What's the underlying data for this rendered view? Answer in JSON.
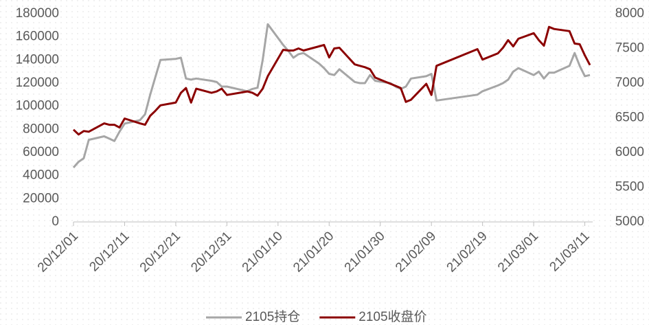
{
  "chart_data": {
    "type": "line",
    "x": [
      "20/12/01",
      "20/12/02",
      "20/12/03",
      "20/12/04",
      "20/12/07",
      "20/12/08",
      "20/12/09",
      "20/12/10",
      "20/12/11",
      "20/12/14",
      "20/12/15",
      "20/12/16",
      "20/12/17",
      "20/12/18",
      "20/12/21",
      "20/12/22",
      "20/12/23",
      "20/12/24",
      "20/12/25",
      "20/12/28",
      "20/12/29",
      "20/12/30",
      "20/12/31",
      "21/01/04",
      "21/01/05",
      "21/01/06",
      "21/01/07",
      "21/01/08",
      "21/01/11",
      "21/01/12",
      "21/01/13",
      "21/01/14",
      "21/01/15",
      "21/01/18",
      "21/01/19",
      "21/01/20",
      "21/01/21",
      "21/01/22",
      "21/01/25",
      "21/01/26",
      "21/01/27",
      "21/01/28",
      "21/01/29",
      "21/02/01",
      "21/02/02",
      "21/02/03",
      "21/02/04",
      "21/02/05",
      "21/02/08",
      "21/02/09",
      "21/02/10",
      "21/02/18",
      "21/02/19",
      "21/02/22",
      "21/02/23",
      "21/02/24",
      "21/02/25",
      "21/02/26",
      "21/03/01",
      "21/03/02",
      "21/03/03",
      "21/03/04",
      "21/03/05",
      "21/03/08",
      "21/03/09",
      "21/03/10",
      "21/03/11",
      "21/03/12"
    ],
    "series": [
      {
        "name": "2105持仓",
        "color": "#a6a6a6",
        "axis": "y",
        "values": [
          47000,
          52000,
          55000,
          71000,
          74000,
          72000,
          70000,
          78000,
          85000,
          88000,
          93000,
          110000,
          125000,
          140000,
          141000,
          142000,
          124000,
          123000,
          124000,
          122000,
          121000,
          117000,
          117000,
          113000,
          115000,
          116000,
          140000,
          171000,
          153000,
          148000,
          142000,
          145000,
          146000,
          137000,
          133000,
          128000,
          127000,
          132000,
          121000,
          120000,
          120000,
          127000,
          122000,
          120000,
          117000,
          115000,
          117000,
          124000,
          126000,
          128000,
          105000,
          110000,
          113000,
          118000,
          120000,
          123000,
          130000,
          133000,
          127000,
          130000,
          124000,
          129000,
          129000,
          135000,
          146000,
          135000,
          126000,
          127000
        ]
      },
      {
        "name": "2105收盘价",
        "color": "#8b0000",
        "axis": "y2",
        "values": [
          6330,
          6260,
          6310,
          6300,
          6420,
          6400,
          6400,
          6360,
          6490,
          6420,
          6400,
          6530,
          6600,
          6680,
          6720,
          6860,
          6930,
          6720,
          6920,
          6860,
          6880,
          6920,
          6830,
          6880,
          6860,
          6820,
          6920,
          7100,
          7480,
          7470,
          7470,
          7500,
          7470,
          7530,
          7550,
          7370,
          7500,
          7510,
          7270,
          7250,
          7230,
          7200,
          7080,
          6990,
          6960,
          6930,
          6730,
          6760,
          6990,
          6830,
          7250,
          7490,
          7340,
          7430,
          7510,
          7620,
          7530,
          7640,
          7720,
          7620,
          7540,
          7810,
          7780,
          7750,
          7570,
          7560,
          7400,
          7260
        ]
      }
    ],
    "xlim": [
      "20/12/01",
      "21/03/12"
    ],
    "xticks": [
      "20/12/01",
      "20/12/11",
      "20/12/21",
      "20/12/31",
      "21/01/10",
      "21/01/20",
      "21/01/30",
      "21/02/09",
      "21/02/19",
      "21/03/01",
      "21/03/11"
    ],
    "ylim": [
      0,
      180000
    ],
    "yticks": [
      0,
      20000,
      40000,
      60000,
      80000,
      100000,
      120000,
      140000,
      160000,
      180000
    ],
    "y2lim": [
      5000,
      8000
    ],
    "y2ticks": [
      5000,
      5500,
      6000,
      6500,
      7000,
      7500,
      8000
    ],
    "legend": "bottom"
  }
}
